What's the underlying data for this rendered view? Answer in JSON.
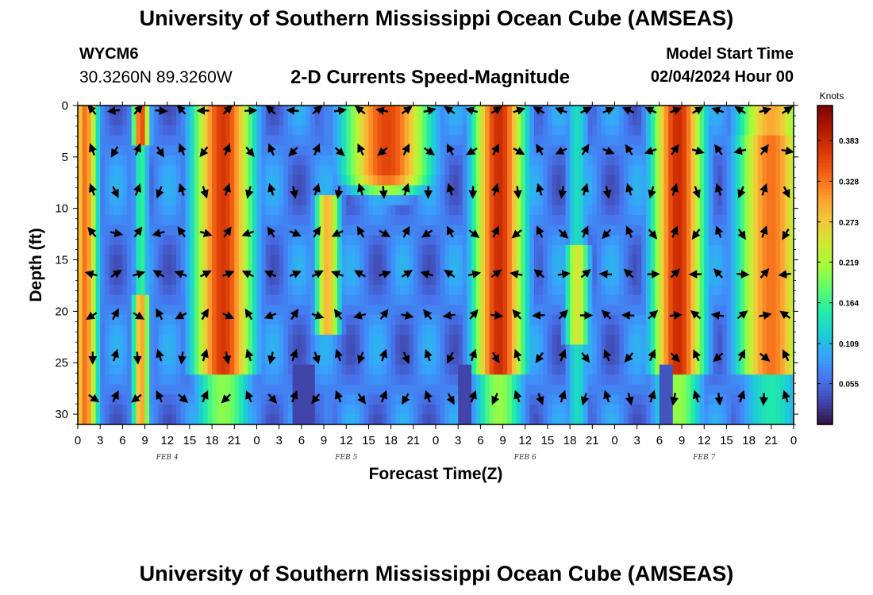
{
  "header": {
    "title": "University of Southern Mississippi Ocean Cube (AMSEAS)",
    "station_id": "WYCM6",
    "station_coords": "30.3260N  89.3260W",
    "chart_title": "2-D Currents Speed-Magnitude",
    "model_label": "Model Start Time",
    "model_time": "02/04/2024 Hour 00"
  },
  "footer": {
    "title": "University of Southern Mississippi Ocean Cube (AMSEAS)"
  },
  "chart_data": {
    "type": "heatmap",
    "title": "2-D Currents Speed-Magnitude",
    "xlabel": "Forecast Time(Z)",
    "ylabel": "Depth (ft)",
    "x_range_hours": [
      0,
      96
    ],
    "y_range_ft": [
      0,
      31
    ],
    "y_inverted": true,
    "x_tick_labels": [
      "0",
      "3",
      "6",
      "9",
      "12",
      "15",
      "18",
      "21",
      "0",
      "3",
      "6",
      "9",
      "12",
      "15",
      "18",
      "21",
      "0",
      "3",
      "6",
      "9",
      "12",
      "15",
      "18",
      "21",
      "0",
      "3",
      "6",
      "9",
      "12",
      "15",
      "18",
      "21",
      "0"
    ],
    "y_tick_labels": [
      "0",
      "5",
      "10",
      "15",
      "20",
      "25",
      "30"
    ],
    "y_ticks": [
      0,
      5,
      10,
      15,
      20,
      25,
      30
    ],
    "day_labels": [
      {
        "label": "FEB 4",
        "hour": 12
      },
      {
        "label": "FEB 5",
        "hour": 36
      },
      {
        "label": "FEB 6",
        "hour": 60
      },
      {
        "label": "FEB 7",
        "hour": 84
      }
    ],
    "colorbar": {
      "unit": "Knots",
      "tick_values": [
        0.055,
        0.109,
        0.164,
        0.219,
        0.273,
        0.328,
        0.383
      ],
      "tick_labels": [
        "0.055",
        "0.109",
        "0.164",
        "0.219",
        "0.273",
        "0.328",
        "0.383"
      ],
      "range": [
        0.0,
        0.43
      ],
      "colors": [
        "#30123b",
        "#4145ab",
        "#4675ed",
        "#39a2fc",
        "#1bcfd4",
        "#24eca6",
        "#61fc6c",
        "#a4fc3b",
        "#d1e834",
        "#f3c63a",
        "#fe9b2d",
        "#f36315",
        "#d93806",
        "#b11901",
        "#7a0403"
      ]
    },
    "vector_depths_ft": [
      0.5,
      4.4,
      8.3,
      12.4,
      16.4,
      20.4,
      24.4,
      28.4
    ],
    "vector_times_hours": [
      2,
      5,
      8,
      11,
      14,
      17,
      20,
      23,
      26,
      29,
      32,
      35,
      38,
      41,
      44,
      47,
      50,
      53,
      56,
      59,
      62,
      65,
      68,
      71,
      74,
      77,
      80,
      83,
      86,
      89,
      92,
      95
    ],
    "speed_profile_description": "alternating high-speed (red) vertical bands near hours 0-2, 8-9, 16-24, 32-34, 36-46 (upper), 53-61, 65-67, 78-83, 87-96 separated by slow (blue) bands",
    "speed_bands": [
      {
        "center_hour": 1,
        "width_hours": 1.5,
        "speed": 0.33
      },
      {
        "center_hour": 8.5,
        "width_hours": 1.0,
        "speed": 0.36
      },
      {
        "center_hour": 19.5,
        "width_hours": 3.5,
        "speed": 0.37
      },
      {
        "center_hour": 33.5,
        "width_hours": 1.5,
        "speed": 0.29
      },
      {
        "center_hour": 41.5,
        "width_hours": 5.0,
        "speed": 0.36
      },
      {
        "center_hour": 56.5,
        "width_hours": 3.0,
        "speed": 0.38
      },
      {
        "center_hour": 67,
        "width_hours": 1.5,
        "speed": 0.25
      },
      {
        "center_hour": 80.5,
        "width_hours": 3.0,
        "speed": 0.38
      },
      {
        "center_hour": 93,
        "width_hours": 4.0,
        "speed": 0.33
      }
    ]
  }
}
